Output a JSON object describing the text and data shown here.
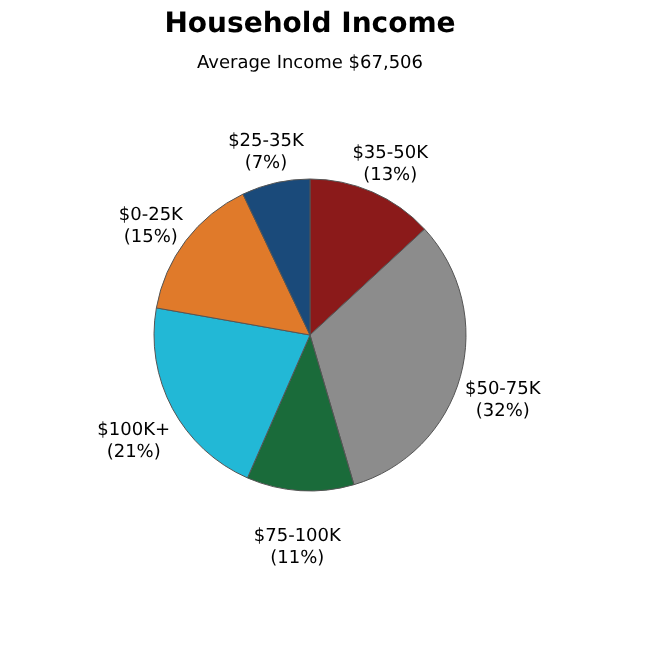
{
  "chart_data": {
    "type": "pie",
    "title": "Household Income",
    "subtitle": "Average Income  $67,506",
    "categories": [
      "$35-50K",
      "$50-75K",
      "$75-100K",
      "$100K+",
      "$0-25K",
      "$25-35K"
    ],
    "values": [
      13,
      32,
      11,
      21,
      15,
      7
    ],
    "value_labels": [
      "(13%)",
      "(32%)",
      "(11%)",
      "(21%)",
      "(15%)",
      "(7%)"
    ],
    "colors": [
      "#8b1a1a",
      "#8c8c8c",
      "#1a6b3a",
      "#22b8d6",
      "#e07a2a",
      "#1a4a7a"
    ],
    "legend": false
  }
}
